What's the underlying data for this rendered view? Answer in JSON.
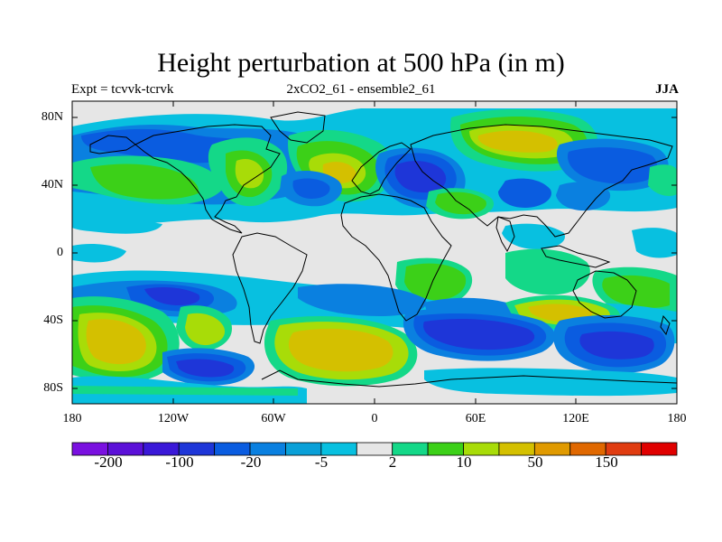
{
  "title": "Height perturbation at 500 hPa (in m)",
  "subtitle_left": "Expt = tcvvk-tcrvk",
  "subtitle_center": "2xCO2_61 - ensemble2_61",
  "subtitle_right": "JJA",
  "lat_labels": [
    "80N",
    "40N",
    "0",
    "40S",
    "80S"
  ],
  "lon_labels": [
    "180",
    "120W",
    "60W",
    "0",
    "60E",
    "120E",
    "180"
  ],
  "colorbar_labels": [
    "-200",
    "-100",
    "-20",
    "-5",
    "2",
    "10",
    "50",
    "150"
  ],
  "colorbar_colors": [
    "#7a10e0",
    "#5b10d8",
    "#3a18d8",
    "#1e36d8",
    "#0a5ce0",
    "#0a80e0",
    "#0aa0d8",
    "#08c0e0",
    "#e6e6e6",
    "#14d888",
    "#3cd018",
    "#a8dc08",
    "#d4c000",
    "#e09a00",
    "#e06800",
    "#e03c10",
    "#e00000"
  ],
  "colors": {
    "missing": "#e6e6e6",
    "cyan": "#08c0e0",
    "midblue": "#0a80e0",
    "blue": "#0a5ce0",
    "darkblue": "#1e36d8",
    "teal": "#14d888",
    "green": "#3cd018",
    "yellowgreen": "#a8dc08",
    "yellow": "#d4c000"
  }
}
